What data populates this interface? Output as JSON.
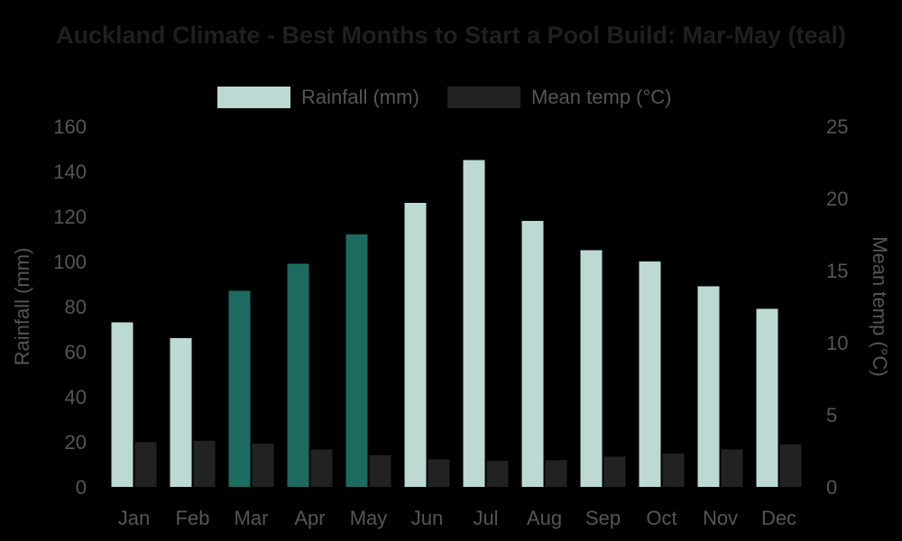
{
  "chart_data": {
    "type": "bar",
    "title": "Auckland Climate - Best Months to Start a Pool Build: Mar-May (teal)",
    "categories": [
      "Jan",
      "Feb",
      "Mar",
      "Apr",
      "May",
      "Jun",
      "Jul",
      "Aug",
      "Sep",
      "Oct",
      "Nov",
      "Dec"
    ],
    "series": [
      {
        "name": "Rainfall (mm)",
        "axis": "left",
        "color": "#bcd9d4",
        "highlight_color": "#1d6b60",
        "highlight_categories": [
          "Mar",
          "Apr",
          "May"
        ],
        "values": [
          73,
          66,
          87,
          99,
          112,
          126,
          145,
          118,
          105,
          100,
          89,
          79
        ]
      },
      {
        "name": "Mean temp (°C)",
        "axis": "right",
        "color": "#222222",
        "values": [
          3.1,
          3.2,
          3.0,
          2.6,
          2.2,
          1.9,
          1.8,
          1.85,
          2.1,
          2.3,
          2.6,
          2.95
        ]
      }
    ],
    "ylabel": "Rainfall (mm)",
    "y2label": "Mean temp (°C)",
    "ylim": [
      0,
      160
    ],
    "y2lim": [
      0,
      25
    ],
    "yticks": [
      "0",
      "20",
      "40",
      "60",
      "80",
      "100",
      "120",
      "140",
      "160"
    ],
    "y2ticks": [
      "0",
      "5",
      "10",
      "15",
      "20",
      "25"
    ],
    "legend": "top-center",
    "grid": false
  }
}
